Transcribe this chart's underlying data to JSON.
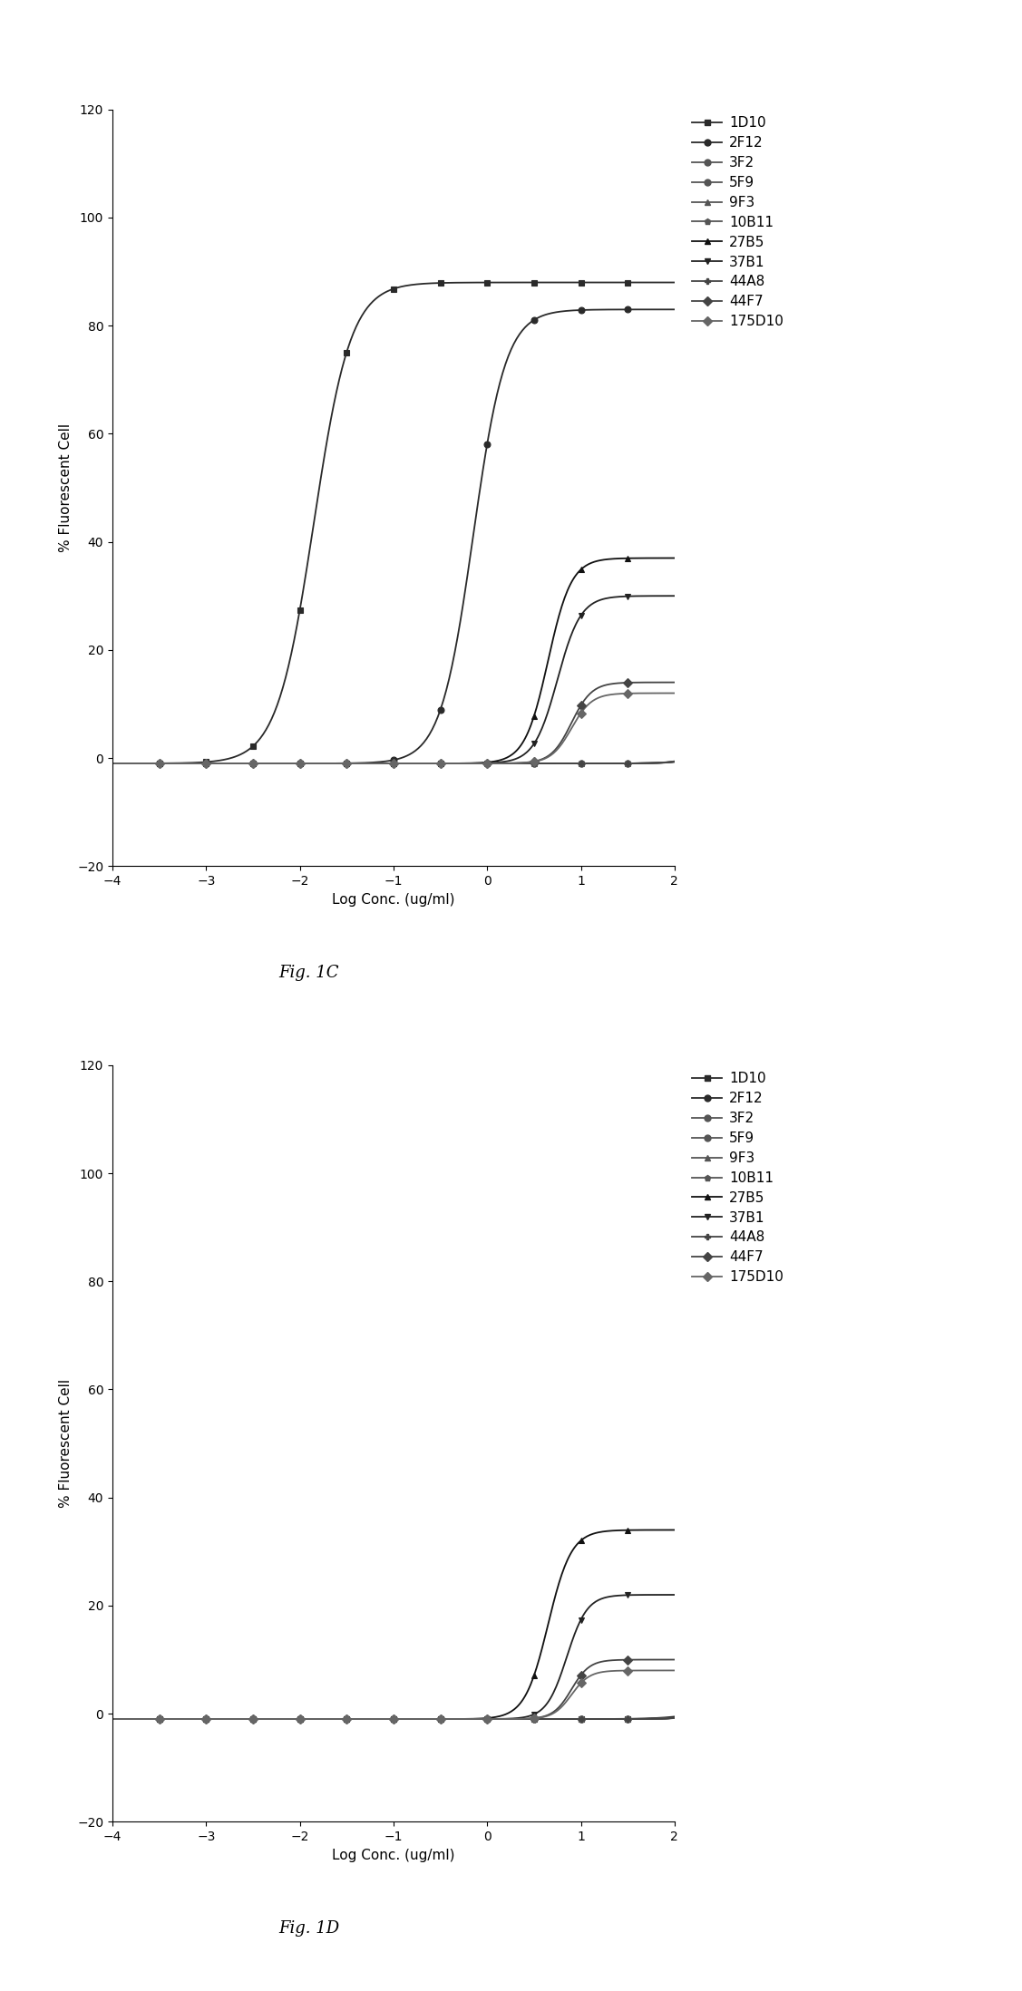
{
  "fig1C": {
    "title": "Fig. 1C",
    "series": [
      {
        "label": "1D10",
        "marker": "s",
        "color": "#2a2a2a",
        "ec50_log": -1.85,
        "hill": 2.2,
        "top": 88,
        "bottom": -1
      },
      {
        "label": "2F12",
        "marker": "o",
        "color": "#2a2a2a",
        "ec50_log": -0.15,
        "hill": 2.5,
        "top": 83,
        "bottom": -1
      },
      {
        "label": "3F2",
        "marker": "o",
        "color": "#555555",
        "ec50_log": 2.5,
        "hill": 3.0,
        "top": 10,
        "bottom": -1
      },
      {
        "label": "5F9",
        "marker": "o",
        "color": "#555555",
        "ec50_log": 2.5,
        "hill": 3.0,
        "top": 12,
        "bottom": -1
      },
      {
        "label": "9F3",
        "marker": "^",
        "color": "#555555",
        "ec50_log": 2.5,
        "hill": 3.0,
        "top": 10,
        "bottom": -1
      },
      {
        "label": "10B11",
        "marker": "p",
        "color": "#555555",
        "ec50_log": 2.5,
        "hill": 3.0,
        "top": 9,
        "bottom": -1
      },
      {
        "label": "27B5",
        "marker": "^",
        "color": "#111111",
        "ec50_log": 0.65,
        "hill": 3.5,
        "top": 37,
        "bottom": -1
      },
      {
        "label": "37B1",
        "marker": "v",
        "color": "#222222",
        "ec50_log": 0.75,
        "hill": 3.5,
        "top": 30,
        "bottom": -1
      },
      {
        "label": "44A8",
        "marker": "P",
        "color": "#444444",
        "ec50_log": 2.5,
        "hill": 3.0,
        "top": 8,
        "bottom": -1
      },
      {
        "label": "44F7",
        "marker": "D",
        "color": "#444444",
        "ec50_log": 0.9,
        "hill": 4.0,
        "top": 14,
        "bottom": -1
      },
      {
        "label": "175D10",
        "marker": "D",
        "color": "#666666",
        "ec50_log": 0.9,
        "hill": 4.0,
        "top": 12,
        "bottom": -1
      }
    ],
    "xlabel": "Log Conc. (ug/ml)",
    "ylabel": "% Fluorescent Cell",
    "xlim": [
      -4,
      2
    ],
    "ylim": [
      -20,
      120
    ],
    "xticks": [
      -4,
      -3,
      -2,
      -1,
      0,
      1,
      2
    ],
    "yticks": [
      -20,
      0,
      20,
      40,
      60,
      80,
      100,
      120
    ]
  },
  "fig1D": {
    "title": "Fig. 1D",
    "series": [
      {
        "label": "1D10",
        "marker": "s",
        "color": "#2a2a2a",
        "ec50_log": 2.5,
        "hill": 2.0,
        "top": 4,
        "bottom": -1
      },
      {
        "label": "2F12",
        "marker": "o",
        "color": "#2a2a2a",
        "ec50_log": 2.5,
        "hill": 2.5,
        "top": 4,
        "bottom": -1
      },
      {
        "label": "3F2",
        "marker": "o",
        "color": "#555555",
        "ec50_log": 2.5,
        "hill": 3.0,
        "top": 5,
        "bottom": -1
      },
      {
        "label": "5F9",
        "marker": "o",
        "color": "#555555",
        "ec50_log": 2.5,
        "hill": 3.0,
        "top": 5,
        "bottom": -1
      },
      {
        "label": "9F3",
        "marker": "^",
        "color": "#555555",
        "ec50_log": 2.5,
        "hill": 3.0,
        "top": 6,
        "bottom": -1
      },
      {
        "label": "10B11",
        "marker": "p",
        "color": "#555555",
        "ec50_log": 2.5,
        "hill": 3.0,
        "top": 6,
        "bottom": -1
      },
      {
        "label": "27B5",
        "marker": "^",
        "color": "#111111",
        "ec50_log": 0.65,
        "hill": 3.5,
        "top": 34,
        "bottom": -1
      },
      {
        "label": "37B1",
        "marker": "v",
        "color": "#222222",
        "ec50_log": 0.85,
        "hill": 4.0,
        "top": 22,
        "bottom": -1
      },
      {
        "label": "44A8",
        "marker": "P",
        "color": "#444444",
        "ec50_log": 2.5,
        "hill": 3.0,
        "top": 6,
        "bottom": -1
      },
      {
        "label": "44F7",
        "marker": "D",
        "color": "#444444",
        "ec50_log": 0.9,
        "hill": 4.5,
        "top": 10,
        "bottom": -1
      },
      {
        "label": "175D10",
        "marker": "D",
        "color": "#666666",
        "ec50_log": 0.9,
        "hill": 4.5,
        "top": 8,
        "bottom": -1
      }
    ],
    "xlabel": "Log Conc. (ug/ml)",
    "ylabel": "% Fluorescent Cell",
    "xlim": [
      -4,
      2
    ],
    "ylim": [
      -20,
      120
    ],
    "xticks": [
      -4,
      -3,
      -2,
      -1,
      0,
      1,
      2
    ],
    "yticks": [
      -20,
      0,
      20,
      40,
      60,
      80,
      100,
      120
    ]
  },
  "legend_entries_1C": [
    {
      "label": "1D10",
      "marker": "s",
      "color": "#2a2a2a"
    },
    {
      "label": "2F12",
      "marker": "o",
      "color": "#2a2a2a"
    },
    {
      "label": "3F2",
      "marker": "o",
      "color": "#555555"
    },
    {
      "label": "5F9",
      "marker": "o",
      "color": "#555555"
    },
    {
      "label": "9F3",
      "marker": "^",
      "color": "#555555"
    },
    {
      "label": "10B11",
      "marker": "p",
      "color": "#555555"
    },
    {
      "label": "27B5",
      "marker": "^",
      "color": "#111111"
    },
    {
      "label": "37B1",
      "marker": "v",
      "color": "#222222"
    },
    {
      "label": "44A8",
      "marker": "P",
      "color": "#444444"
    },
    {
      "label": "44F7",
      "marker": "D",
      "color": "#444444"
    },
    {
      "label": "175D10",
      "marker": "D",
      "color": "#666666"
    }
  ],
  "background_color": "#ffffff",
  "font_size": 10,
  "label_font_size": 11,
  "title_font_size": 13,
  "x_data_pts": [
    -3.5,
    -3.0,
    -2.5,
    -2.0,
    -1.5,
    -1.0,
    -0.5,
    0.0,
    0.5,
    1.0,
    1.5
  ]
}
